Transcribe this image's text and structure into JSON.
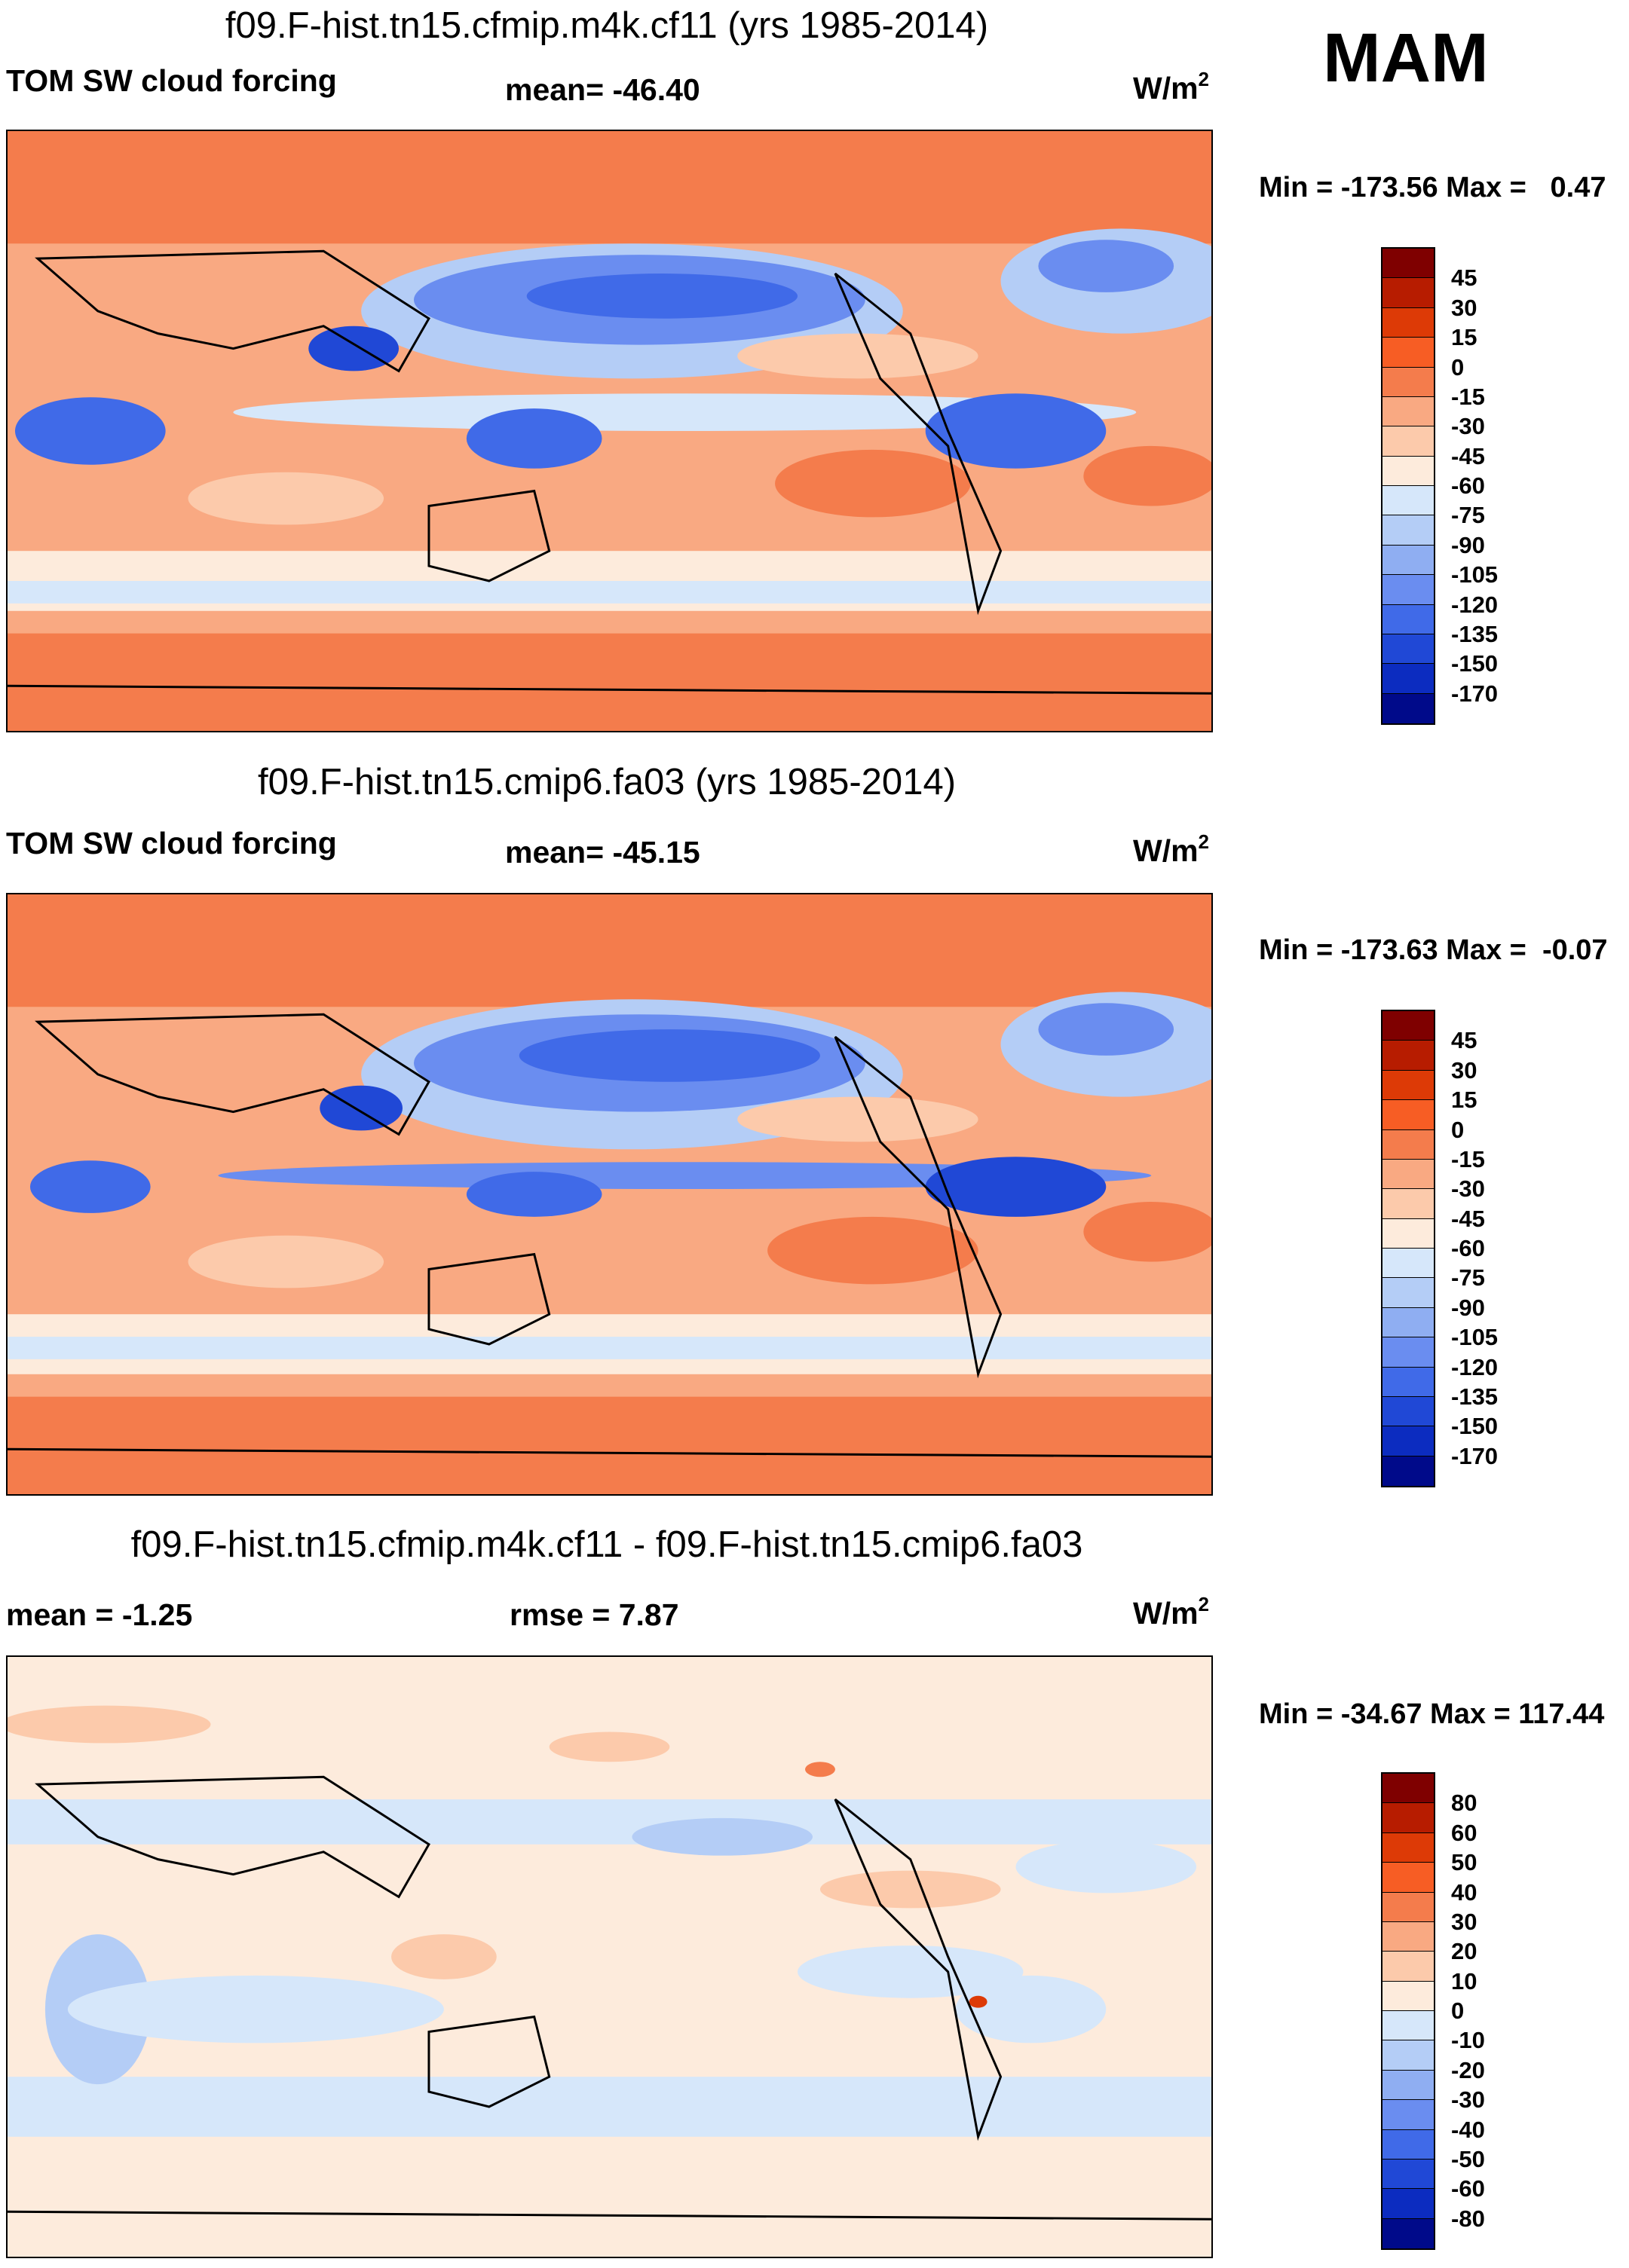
{
  "season": "MAM",
  "panels": [
    {
      "title": "f09.F-hist.tn15.cfmip.m4k.cf11 (yrs 1985-2014)",
      "left_label": "TOM SW cloud forcing",
      "center_label": "mean= -46.40",
      "units_base": "W/m",
      "units_exp": "2",
      "minmax": "Min = -173.56 Max =   0.47",
      "map_description": "global map of top-of-model shortwave cloud forcing"
    },
    {
      "title": "f09.F-hist.tn15.cmip6.fa03 (yrs 1985-2014)",
      "left_label": "TOM SW cloud forcing",
      "center_label": "mean= -45.15",
      "units_base": "W/m",
      "units_exp": "2",
      "minmax": "Min = -173.63 Max =  -0.07",
      "map_description": "global map of top-of-model shortwave cloud forcing"
    },
    {
      "title": "f09.F-hist.tn15.cfmip.m4k.cf11 - f09.F-hist.tn15.cmip6.fa03",
      "left_label": "mean =  -1.25",
      "center_label": "rmse =   7.87",
      "units_base": "W/m",
      "units_exp": "2",
      "minmax": "Min = -34.67 Max = 117.44",
      "map_description": "global map of difference field"
    }
  ],
  "colorbars": [
    {
      "labels": [
        "45",
        "30",
        "15",
        "0",
        "-15",
        "-30",
        "-45",
        "-60",
        "-75",
        "-90",
        "-105",
        "-120",
        "-135",
        "-150",
        "-170"
      ],
      "colors": [
        "#7f0000",
        "#b71c00",
        "#dd3a06",
        "#f75d24",
        "#f47c4c",
        "#f9a982",
        "#fccaab",
        "#fdebdc",
        "#d6e7fa",
        "#b4cdf6",
        "#8faef2",
        "#6a8df0",
        "#406ae8",
        "#2048d6",
        "#0c2cc0",
        "#000a8a"
      ]
    },
    {
      "labels": [
        "45",
        "30",
        "15",
        "0",
        "-15",
        "-30",
        "-45",
        "-60",
        "-75",
        "-90",
        "-105",
        "-120",
        "-135",
        "-150",
        "-170"
      ],
      "colors": [
        "#7f0000",
        "#b71c00",
        "#dd3a06",
        "#f75d24",
        "#f47c4c",
        "#f9a982",
        "#fccaab",
        "#fdebdc",
        "#d6e7fa",
        "#b4cdf6",
        "#8faef2",
        "#6a8df0",
        "#406ae8",
        "#2048d6",
        "#0c2cc0",
        "#000a8a"
      ]
    },
    {
      "labels": [
        "80",
        "60",
        "50",
        "40",
        "30",
        "20",
        "10",
        "0",
        "-10",
        "-20",
        "-30",
        "-40",
        "-50",
        "-60",
        "-80"
      ],
      "colors": [
        "#7f0000",
        "#b71c00",
        "#dd3a06",
        "#f75d24",
        "#f47c4c",
        "#f9a982",
        "#fccaab",
        "#fdebdc",
        "#d6e7fa",
        "#b4cdf6",
        "#8faef2",
        "#6a8df0",
        "#406ae8",
        "#2048d6",
        "#0c2cc0",
        "#000a8a"
      ]
    }
  ],
  "chart_data": [
    {
      "type": "heatmap",
      "title": "f09.F-hist.tn15.cfmip.m4k.cf11 (yrs 1985-2014)",
      "variable": "TOM SW cloud forcing",
      "units": "W/m2",
      "mean": -46.4,
      "min": -173.56,
      "max": 0.47,
      "levels": [
        45,
        30,
        15,
        0,
        -15,
        -30,
        -45,
        -60,
        -75,
        -90,
        -105,
        -120,
        -135,
        -150,
        -170
      ]
    },
    {
      "type": "heatmap",
      "title": "f09.F-hist.tn15.cmip6.fa03 (yrs 1985-2014)",
      "variable": "TOM SW cloud forcing",
      "units": "W/m2",
      "mean": -45.15,
      "min": -173.63,
      "max": -0.07,
      "levels": [
        45,
        30,
        15,
        0,
        -15,
        -30,
        -45,
        -60,
        -75,
        -90,
        -105,
        -120,
        -135,
        -150,
        -170
      ]
    },
    {
      "type": "heatmap",
      "title": "f09.F-hist.tn15.cfmip.m4k.cf11 - f09.F-hist.tn15.cmip6.fa03",
      "variable": "difference",
      "units": "W/m2",
      "mean": -1.25,
      "rmse": 7.87,
      "min": -34.67,
      "max": 117.44,
      "levels": [
        80,
        60,
        50,
        40,
        30,
        20,
        10,
        0,
        -10,
        -20,
        -30,
        -40,
        -50,
        -60,
        -80
      ]
    }
  ]
}
